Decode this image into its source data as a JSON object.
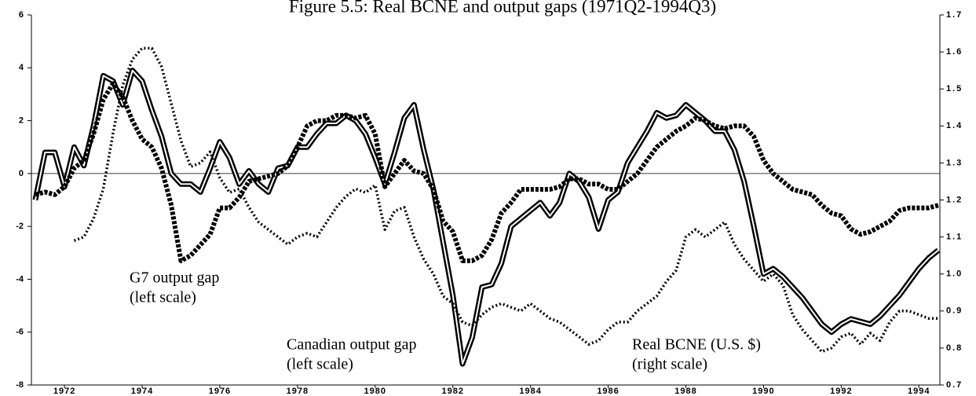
{
  "chart_data": {
    "type": "line",
    "title": "Figure 5.5: Real BCNE and output gaps (1971Q2-1994Q3)",
    "x": [
      1971.25,
      1971.5,
      1971.75,
      1972,
      1972.25,
      1972.5,
      1972.75,
      1973,
      1973.25,
      1973.5,
      1973.75,
      1974,
      1974.25,
      1974.5,
      1974.75,
      1975,
      1975.25,
      1975.5,
      1975.75,
      1976,
      1976.25,
      1976.5,
      1976.75,
      1977,
      1977.25,
      1977.5,
      1977.75,
      1978,
      1978.25,
      1978.5,
      1978.75,
      1979,
      1979.25,
      1979.5,
      1979.75,
      1980,
      1980.25,
      1980.5,
      1980.75,
      1981,
      1981.25,
      1981.5,
      1981.75,
      1982,
      1982.25,
      1982.5,
      1982.75,
      1983,
      1983.25,
      1983.5,
      1983.75,
      1984,
      1984.25,
      1984.5,
      1984.75,
      1985,
      1985.25,
      1985.5,
      1985.75,
      1986,
      1986.25,
      1986.5,
      1986.75,
      1987,
      1987.25,
      1987.5,
      1987.75,
      1988,
      1988.25,
      1988.5,
      1988.75,
      1989,
      1989.25,
      1989.5,
      1989.75,
      1990,
      1990.25,
      1990.5,
      1990.75,
      1991,
      1991.25,
      1991.5,
      1991.75,
      1992,
      1992.25,
      1992.5,
      1992.75,
      1993,
      1993.25,
      1993.5,
      1993.75,
      1994,
      1994.25,
      1994.5
    ],
    "xlim": [
      1971.25,
      1994.5
    ],
    "xticks": [
      1972,
      1974,
      1976,
      1978,
      1980,
      1982,
      1984,
      1986,
      1988,
      1990,
      1992,
      1994
    ],
    "ylim": [
      -8,
      6
    ],
    "yticks": [
      -8,
      -6,
      -4,
      -2,
      0,
      2,
      4,
      6
    ],
    "y2lim": [
      0.7,
      1.7
    ],
    "y2ticks": [
      {
        "value": 0.7,
        "label": "0.7"
      },
      0.8,
      0.9,
      {
        "value": 1,
        "label": "1.0"
      },
      1.1,
      1.2,
      1.3,
      1.4,
      1.5,
      1.6,
      1.7
    ],
    "zero_line": true,
    "series": [
      {
        "name": "Canadian output gap",
        "scale_label": "(left scale)",
        "color": "#000000",
        "style": "solid",
        "axis": "y",
        "values": [
          -1.0,
          0.8,
          0.8,
          -0.5,
          1.0,
          0.3,
          1.8,
          3.7,
          3.5,
          2.6,
          3.9,
          3.5,
          2.4,
          1.4,
          0,
          -0.4,
          -0.4,
          -0.7,
          0.2,
          1.2,
          0.6,
          -0.4,
          0.1,
          -0.4,
          -0.7,
          0.2,
          0.3,
          1.0,
          1.0,
          1.5,
          1.9,
          1.9,
          2.2,
          2.0,
          1.5,
          0.6,
          -0.4,
          0.8,
          2.1,
          2.6,
          0.9,
          -0.6,
          -2.6,
          -4.6,
          -7.2,
          -6.2,
          -4.3,
          -4.2,
          -3.4,
          -2.0,
          -1.7,
          -1.4,
          -1.1,
          -1.6,
          -1.1,
          0.0,
          -0.3,
          -0.9,
          -2.1,
          -1.0,
          -0.7,
          0.4,
          1.0,
          1.6,
          2.3,
          2.1,
          2.2,
          2.6,
          2.3,
          2.0,
          1.6,
          1.6,
          0.9,
          -0.3,
          -2.0,
          -3.8,
          -3.6,
          -3.9,
          -4.3,
          -4.7,
          -5.2,
          -5.7,
          -6.0,
          -5.7,
          -5.5,
          -5.6,
          -5.7,
          -5.4,
          -5.0,
          -4.6,
          -4.1,
          -3.6,
          -3.2,
          -2.9
        ]
      },
      {
        "name": "G7 output gap",
        "scale_label": "(left scale)",
        "color": "#000000",
        "style": "dashed",
        "axis": "y",
        "values": [
          -0.8,
          -0.7,
          -0.8,
          -0.5,
          0.2,
          0.5,
          1.5,
          2.8,
          3.4,
          2.9,
          2.0,
          1.3,
          1.0,
          0.2,
          -1.2,
          -3.3,
          -3.1,
          -2.7,
          -2.3,
          -1.3,
          -1.3,
          -0.9,
          -0.3,
          -0.2,
          -0.1,
          0.0,
          0.3,
          1.0,
          1.8,
          2.0,
          2.0,
          2.2,
          2.2,
          2.1,
          2.2,
          1.5,
          -0.5,
          0.0,
          0.5,
          0.1,
          0.0,
          -0.6,
          -1.8,
          -2.2,
          -3.3,
          -3.3,
          -3.1,
          -2.5,
          -1.5,
          -1.1,
          -0.6,
          -0.6,
          -0.6,
          -0.6,
          -0.5,
          -0.2,
          -0.2,
          -0.4,
          -0.4,
          -0.6,
          -0.6,
          -0.3,
          0.0,
          0.5,
          1.0,
          1.3,
          1.6,
          1.8,
          2.1,
          2.0,
          1.8,
          1.7,
          1.8,
          1.8,
          1.4,
          0.5,
          0.0,
          -0.3,
          -0.6,
          -0.7,
          -0.8,
          -1.2,
          -1.5,
          -1.6,
          -2.1,
          -2.3,
          -2.2,
          -2.0,
          -1.8,
          -1.4,
          -1.3,
          -1.3,
          -1.3,
          -1.2
        ]
      },
      {
        "name": "Real BCNE (U.S. $)",
        "scale_label": "(right scale)",
        "color": "#000000",
        "style": "dotted",
        "axis": "y2",
        "values": [
          null,
          null,
          null,
          null,
          1.09,
          1.1,
          1.15,
          1.23,
          1.38,
          1.51,
          1.58,
          1.61,
          1.61,
          1.56,
          1.46,
          1.36,
          1.29,
          1.3,
          1.33,
          1.26,
          1.22,
          1.23,
          1.18,
          1.14,
          1.12,
          1.1,
          1.08,
          1.1,
          1.11,
          1.1,
          1.14,
          1.18,
          1.21,
          1.23,
          1.22,
          1.24,
          1.12,
          1.17,
          1.18,
          1.1,
          1.04,
          1.0,
          0.94,
          0.92,
          0.87,
          0.86,
          0.89,
          0.91,
          0.92,
          0.91,
          0.9,
          0.92,
          0.9,
          0.88,
          0.87,
          0.85,
          0.83,
          0.81,
          0.82,
          0.85,
          0.87,
          0.87,
          0.9,
          0.92,
          0.94,
          0.98,
          1.01,
          1.1,
          1.12,
          1.1,
          1.12,
          1.14,
          1.08,
          1.04,
          1.01,
          0.98,
          1.0,
          0.97,
          0.89,
          0.85,
          0.82,
          0.79,
          0.8,
          0.83,
          0.84,
          0.81,
          0.84,
          0.82,
          0.87,
          0.9,
          0.9,
          0.89,
          0.88,
          0.88
        ]
      }
    ]
  }
}
